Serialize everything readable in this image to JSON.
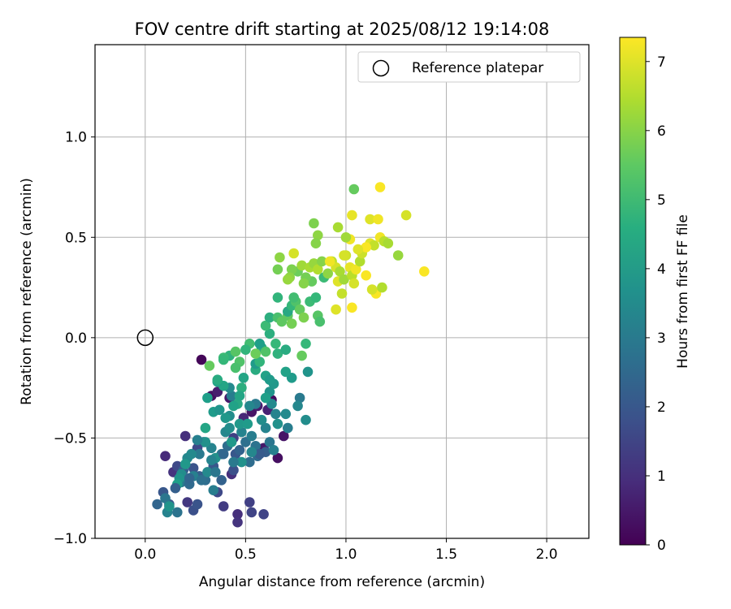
{
  "chart_data": {
    "type": "scatter",
    "title": "FOV centre drift starting at 2025/08/12 19:14:08",
    "xlabel": "Angular distance from reference (arcmin)",
    "ylabel": "Rotation from reference (arcmin)",
    "xlim": [
      -0.25,
      2.21
    ],
    "ylim": [
      -1.0,
      1.46
    ],
    "xticks": [
      0.0,
      0.5,
      1.0,
      1.5,
      2.0
    ],
    "xtick_labels": [
      "0.0",
      "0.5",
      "1.0",
      "1.5",
      "2.0"
    ],
    "yticks": [
      -1.0,
      -0.5,
      0.0,
      0.5,
      1.0
    ],
    "ytick_labels": [
      "−1.0",
      "−0.5",
      "0.0",
      "0.5",
      "1.0"
    ],
    "grid": true,
    "legend": {
      "position": "top-right",
      "entries": [
        {
          "label": "Reference platepar",
          "marker": "open-circle"
        }
      ]
    },
    "reference_point": {
      "x": 0.0,
      "y": 0.0
    },
    "colorbar": {
      "label": "Hours from first FF file",
      "min": 0,
      "max": 7.35,
      "ticks": [
        0,
        1,
        2,
        3,
        4,
        5,
        6,
        7
      ],
      "tick_labels": [
        "0",
        "1",
        "2",
        "3",
        "4",
        "5",
        "6",
        "7"
      ],
      "colormap": "viridis"
    },
    "points": [
      {
        "x": 0.28,
        "y": -0.11,
        "h": 0.1
      },
      {
        "x": 0.33,
        "y": -0.29,
        "h": 0.3
      },
      {
        "x": 0.42,
        "y": -0.3,
        "h": 0.5
      },
      {
        "x": 0.53,
        "y": -0.37,
        "h": 0.4
      },
      {
        "x": 0.56,
        "y": -0.34,
        "h": 0.6
      },
      {
        "x": 0.63,
        "y": -0.31,
        "h": 0.2
      },
      {
        "x": 0.59,
        "y": -0.55,
        "h": 0.5
      },
      {
        "x": 0.66,
        "y": -0.6,
        "h": 0.3
      },
      {
        "x": 0.69,
        "y": -0.49,
        "h": 0.4
      },
      {
        "x": 0.61,
        "y": -0.36,
        "h": 0.7
      },
      {
        "x": 0.49,
        "y": -0.4,
        "h": 0.8
      },
      {
        "x": 0.36,
        "y": -0.27,
        "h": 0.6
      },
      {
        "x": 0.1,
        "y": -0.59,
        "h": 0.9
      },
      {
        "x": 0.2,
        "y": -0.49,
        "h": 1.0
      },
      {
        "x": 0.14,
        "y": -0.67,
        "h": 1.1
      },
      {
        "x": 0.21,
        "y": -0.82,
        "h": 1.2
      },
      {
        "x": 0.43,
        "y": -0.68,
        "h": 1.0
      },
      {
        "x": 0.46,
        "y": -0.88,
        "h": 1.0
      },
      {
        "x": 0.46,
        "y": -0.92,
        "h": 1.1
      },
      {
        "x": 0.39,
        "y": -0.84,
        "h": 1.3
      },
      {
        "x": 0.52,
        "y": -0.82,
        "h": 1.4
      },
      {
        "x": 0.53,
        "y": -0.87,
        "h": 1.5
      },
      {
        "x": 0.59,
        "y": -0.88,
        "h": 1.5
      },
      {
        "x": 0.36,
        "y": -0.77,
        "h": 1.6
      },
      {
        "x": 0.24,
        "y": -0.86,
        "h": 1.8
      },
      {
        "x": 0.26,
        "y": -0.83,
        "h": 1.9
      },
      {
        "x": 0.09,
        "y": -0.77,
        "h": 2.0
      },
      {
        "x": 0.12,
        "y": -0.83,
        "h": 2.1
      },
      {
        "x": 0.06,
        "y": -0.83,
        "h": 2.4
      },
      {
        "x": 0.16,
        "y": -0.87,
        "h": 2.8
      },
      {
        "x": 0.11,
        "y": -0.87,
        "h": 3.3
      },
      {
        "x": 0.1,
        "y": -0.8,
        "h": 2.9
      },
      {
        "x": 0.18,
        "y": -0.72,
        "h": 3.0
      },
      {
        "x": 0.16,
        "y": -0.64,
        "h": 1.6
      },
      {
        "x": 0.19,
        "y": -0.66,
        "h": 2.2
      },
      {
        "x": 0.22,
        "y": -0.73,
        "h": 2.5
      },
      {
        "x": 0.24,
        "y": -0.65,
        "h": 1.9
      },
      {
        "x": 0.27,
        "y": -0.69,
        "h": 2.2
      },
      {
        "x": 0.3,
        "y": -0.71,
        "h": 2.6
      },
      {
        "x": 0.34,
        "y": -0.64,
        "h": 2.0
      },
      {
        "x": 0.38,
        "y": -0.71,
        "h": 2.3
      },
      {
        "x": 0.44,
        "y": -0.66,
        "h": 1.8
      },
      {
        "x": 0.45,
        "y": -0.58,
        "h": 2.0
      },
      {
        "x": 0.47,
        "y": -0.56,
        "h": 2.3
      },
      {
        "x": 0.5,
        "y": -0.52,
        "h": 2.7
      },
      {
        "x": 0.44,
        "y": -0.5,
        "h": 1.4
      },
      {
        "x": 0.41,
        "y": -0.54,
        "h": 2.6
      },
      {
        "x": 0.38,
        "y": -0.58,
        "h": 2.9
      },
      {
        "x": 0.33,
        "y": -0.55,
        "h": 3.3
      },
      {
        "x": 0.29,
        "y": -0.52,
        "h": 2.8
      },
      {
        "x": 0.26,
        "y": -0.55,
        "h": 1.6
      },
      {
        "x": 0.27,
        "y": -0.58,
        "h": 3.0
      },
      {
        "x": 0.21,
        "y": -0.6,
        "h": 3.4
      },
      {
        "x": 0.18,
        "y": -0.68,
        "h": 3.6
      },
      {
        "x": 0.17,
        "y": -0.7,
        "h": 3.8
      },
      {
        "x": 0.24,
        "y": -0.69,
        "h": 3.2
      },
      {
        "x": 0.31,
        "y": -0.67,
        "h": 3.5
      },
      {
        "x": 0.35,
        "y": -0.6,
        "h": 3.7
      },
      {
        "x": 0.4,
        "y": -0.47,
        "h": 3.4
      },
      {
        "x": 0.43,
        "y": -0.52,
        "h": 3.9
      },
      {
        "x": 0.48,
        "y": -0.47,
        "h": 3.3
      },
      {
        "x": 0.53,
        "y": -0.49,
        "h": 3.1
      },
      {
        "x": 0.55,
        "y": -0.54,
        "h": 2.8
      },
      {
        "x": 0.56,
        "y": -0.59,
        "h": 2.5
      },
      {
        "x": 0.6,
        "y": -0.57,
        "h": 2.2
      },
      {
        "x": 0.62,
        "y": -0.52,
        "h": 2.9
      },
      {
        "x": 0.6,
        "y": -0.45,
        "h": 3.3
      },
      {
        "x": 0.58,
        "y": -0.41,
        "h": 3.6
      },
      {
        "x": 0.55,
        "y": -0.33,
        "h": 3.0
      },
      {
        "x": 0.52,
        "y": -0.34,
        "h": 3.4
      },
      {
        "x": 0.47,
        "y": -0.43,
        "h": 3.9
      },
      {
        "x": 0.43,
        "y": -0.29,
        "h": 3.1
      },
      {
        "x": 0.42,
        "y": -0.25,
        "h": 3.5
      },
      {
        "x": 0.39,
        "y": -0.24,
        "h": 4.3
      },
      {
        "x": 0.36,
        "y": -0.22,
        "h": 4.2
      },
      {
        "x": 0.31,
        "y": -0.3,
        "h": 4.1
      },
      {
        "x": 0.34,
        "y": -0.37,
        "h": 4.0
      },
      {
        "x": 0.37,
        "y": -0.36,
        "h": 3.8
      },
      {
        "x": 0.42,
        "y": -0.39,
        "h": 3.6
      },
      {
        "x": 0.46,
        "y": -0.33,
        "h": 4.4
      },
      {
        "x": 0.48,
        "y": -0.25,
        "h": 4.6
      },
      {
        "x": 0.49,
        "y": -0.2,
        "h": 4.3
      },
      {
        "x": 0.55,
        "y": -0.16,
        "h": 4.5
      },
      {
        "x": 0.55,
        "y": -0.13,
        "h": 4.0
      },
      {
        "x": 0.57,
        "y": -0.12,
        "h": 4.8
      },
      {
        "x": 0.6,
        "y": -0.19,
        "h": 4.2
      },
      {
        "x": 0.62,
        "y": -0.27,
        "h": 3.8
      },
      {
        "x": 0.63,
        "y": -0.33,
        "h": 3.5
      },
      {
        "x": 0.65,
        "y": -0.38,
        "h": 3.3
      },
      {
        "x": 0.66,
        "y": -0.43,
        "h": 3.7
      },
      {
        "x": 0.7,
        "y": -0.38,
        "h": 3.5
      },
      {
        "x": 0.71,
        "y": -0.45,
        "h": 3.1
      },
      {
        "x": 0.77,
        "y": -0.3,
        "h": 3.0
      },
      {
        "x": 0.76,
        "y": -0.34,
        "h": 3.4
      },
      {
        "x": 0.8,
        "y": -0.41,
        "h": 3.6
      },
      {
        "x": 0.81,
        "y": -0.17,
        "h": 3.8
      },
      {
        "x": 0.73,
        "y": -0.2,
        "h": 4.0
      },
      {
        "x": 0.7,
        "y": -0.17,
        "h": 4.2
      },
      {
        "x": 0.64,
        "y": -0.23,
        "h": 3.9
      },
      {
        "x": 0.66,
        "y": -0.08,
        "h": 4.7
      },
      {
        "x": 0.7,
        "y": -0.06,
        "h": 4.5
      },
      {
        "x": 0.65,
        "y": -0.03,
        "h": 4.9
      },
      {
        "x": 0.62,
        "y": 0.02,
        "h": 4.6
      },
      {
        "x": 0.58,
        "y": -0.05,
        "h": 4.4
      },
      {
        "x": 0.57,
        "y": -0.03,
        "h": 4.1
      },
      {
        "x": 0.52,
        "y": -0.03,
        "h": 5.1
      },
      {
        "x": 0.5,
        "y": -0.06,
        "h": 4.8
      },
      {
        "x": 0.47,
        "y": -0.12,
        "h": 5.3
      },
      {
        "x": 0.45,
        "y": -0.15,
        "h": 5.2
      },
      {
        "x": 0.42,
        "y": -0.09,
        "h": 4.7
      },
      {
        "x": 0.39,
        "y": -0.1,
        "h": 5.0
      },
      {
        "x": 0.32,
        "y": -0.14,
        "h": 5.6
      },
      {
        "x": 0.6,
        "y": 0.06,
        "h": 5.0
      },
      {
        "x": 0.62,
        "y": 0.1,
        "h": 4.6
      },
      {
        "x": 0.66,
        "y": 0.1,
        "h": 5.2
      },
      {
        "x": 0.71,
        "y": 0.11,
        "h": 5.5
      },
      {
        "x": 0.73,
        "y": 0.07,
        "h": 5.8
      },
      {
        "x": 0.66,
        "y": 0.2,
        "h": 4.8
      },
      {
        "x": 0.71,
        "y": 0.13,
        "h": 4.4
      },
      {
        "x": 0.73,
        "y": 0.16,
        "h": 4.9
      },
      {
        "x": 0.75,
        "y": 0.18,
        "h": 5.3
      },
      {
        "x": 0.77,
        "y": 0.14,
        "h": 5.6
      },
      {
        "x": 0.79,
        "y": 0.1,
        "h": 5.9
      },
      {
        "x": 0.8,
        "y": -0.03,
        "h": 4.9
      },
      {
        "x": 0.78,
        "y": -0.09,
        "h": 5.6
      },
      {
        "x": 0.74,
        "y": 0.2,
        "h": 5.1
      },
      {
        "x": 0.82,
        "y": 0.18,
        "h": 5.0
      },
      {
        "x": 0.85,
        "y": 0.2,
        "h": 4.9
      },
      {
        "x": 0.86,
        "y": 0.11,
        "h": 5.4
      },
      {
        "x": 0.87,
        "y": 0.08,
        "h": 5.2
      },
      {
        "x": 0.89,
        "y": 0.3,
        "h": 5.0
      },
      {
        "x": 0.83,
        "y": 0.28,
        "h": 5.6
      },
      {
        "x": 0.8,
        "y": 0.3,
        "h": 5.8
      },
      {
        "x": 0.79,
        "y": 0.27,
        "h": 6.0
      },
      {
        "x": 0.76,
        "y": 0.33,
        "h": 5.7
      },
      {
        "x": 0.73,
        "y": 0.34,
        "h": 5.9
      },
      {
        "x": 0.72,
        "y": 0.3,
        "h": 6.1
      },
      {
        "x": 0.71,
        "y": 0.29,
        "h": 6.2
      },
      {
        "x": 0.66,
        "y": 0.34,
        "h": 5.8
      },
      {
        "x": 0.67,
        "y": 0.4,
        "h": 6.1
      },
      {
        "x": 0.74,
        "y": 0.42,
        "h": 6.9
      },
      {
        "x": 0.78,
        "y": 0.36,
        "h": 6.3
      },
      {
        "x": 0.82,
        "y": 0.35,
        "h": 6.4
      },
      {
        "x": 0.84,
        "y": 0.37,
        "h": 6.2
      },
      {
        "x": 0.86,
        "y": 0.34,
        "h": 6.5
      },
      {
        "x": 0.88,
        "y": 0.38,
        "h": 6.0
      },
      {
        "x": 0.91,
        "y": 0.32,
        "h": 6.1
      },
      {
        "x": 0.93,
        "y": 0.38,
        "h": 6.6
      },
      {
        "x": 0.95,
        "y": 0.35,
        "h": 6.9
      },
      {
        "x": 0.96,
        "y": 0.28,
        "h": 7.0
      },
      {
        "x": 0.97,
        "y": 0.33,
        "h": 6.4
      },
      {
        "x": 0.98,
        "y": 0.22,
        "h": 6.7
      },
      {
        "x": 0.99,
        "y": 0.29,
        "h": 6.3
      },
      {
        "x": 1.0,
        "y": 0.41,
        "h": 6.8
      },
      {
        "x": 1.02,
        "y": 0.35,
        "h": 7.1
      },
      {
        "x": 1.03,
        "y": 0.31,
        "h": 6.6
      },
      {
        "x": 1.04,
        "y": 0.27,
        "h": 6.9
      },
      {
        "x": 1.05,
        "y": 0.34,
        "h": 7.2
      },
      {
        "x": 1.07,
        "y": 0.38,
        "h": 6.5
      },
      {
        "x": 1.08,
        "y": 0.42,
        "h": 6.8
      },
      {
        "x": 1.1,
        "y": 0.31,
        "h": 7.3
      },
      {
        "x": 1.12,
        "y": 0.47,
        "h": 7.0
      },
      {
        "x": 1.14,
        "y": 0.46,
        "h": 6.7
      },
      {
        "x": 1.15,
        "y": 0.22,
        "h": 7.3
      },
      {
        "x": 1.13,
        "y": 0.24,
        "h": 6.9
      },
      {
        "x": 1.17,
        "y": 0.5,
        "h": 7.2
      },
      {
        "x": 1.19,
        "y": 0.48,
        "h": 6.6
      },
      {
        "x": 1.21,
        "y": 0.47,
        "h": 6.4
      },
      {
        "x": 1.18,
        "y": 0.25,
        "h": 6.5
      },
      {
        "x": 1.26,
        "y": 0.41,
        "h": 6.2
      },
      {
        "x": 1.3,
        "y": 0.61,
        "h": 6.9
      },
      {
        "x": 1.39,
        "y": 0.33,
        "h": 7.3
      },
      {
        "x": 1.17,
        "y": 0.75,
        "h": 7.3
      },
      {
        "x": 1.04,
        "y": 0.74,
        "h": 5.6
      },
      {
        "x": 1.03,
        "y": 0.61,
        "h": 7.1
      },
      {
        "x": 1.12,
        "y": 0.59,
        "h": 7.0
      },
      {
        "x": 1.16,
        "y": 0.59,
        "h": 7.2
      },
      {
        "x": 1.1,
        "y": 0.45,
        "h": 7.3
      },
      {
        "x": 1.06,
        "y": 0.44,
        "h": 7.0
      },
      {
        "x": 1.02,
        "y": 0.49,
        "h": 7.2
      },
      {
        "x": 1.0,
        "y": 0.5,
        "h": 6.3
      },
      {
        "x": 0.96,
        "y": 0.55,
        "h": 6.4
      },
      {
        "x": 0.86,
        "y": 0.51,
        "h": 6.1
      },
      {
        "x": 0.84,
        "y": 0.57,
        "h": 5.9
      },
      {
        "x": 0.85,
        "y": 0.47,
        "h": 6.0
      },
      {
        "x": 0.92,
        "y": 0.38,
        "h": 7.2
      },
      {
        "x": 0.99,
        "y": 0.41,
        "h": 6.9
      },
      {
        "x": 1.03,
        "y": 0.15,
        "h": 7.3
      },
      {
        "x": 0.95,
        "y": 0.14,
        "h": 7.0
      },
      {
        "x": 0.68,
        "y": 0.08,
        "h": 5.5
      },
      {
        "x": 0.6,
        "y": -0.07,
        "h": 5.3
      },
      {
        "x": 0.55,
        "y": -0.08,
        "h": 5.7
      },
      {
        "x": 0.45,
        "y": -0.07,
        "h": 5.4
      },
      {
        "x": 0.39,
        "y": -0.11,
        "h": 4.9
      },
      {
        "x": 0.36,
        "y": -0.21,
        "h": 4.5
      },
      {
        "x": 0.3,
        "y": -0.45,
        "h": 4.3
      },
      {
        "x": 0.3,
        "y": -0.52,
        "h": 3.7
      },
      {
        "x": 0.26,
        "y": -0.51,
        "h": 3.2
      },
      {
        "x": 0.23,
        "y": -0.58,
        "h": 3.5
      },
      {
        "x": 0.2,
        "y": -0.63,
        "h": 3.9
      },
      {
        "x": 0.16,
        "y": -0.73,
        "h": 4.1
      },
      {
        "x": 0.12,
        "y": -0.84,
        "h": 3.8
      },
      {
        "x": 0.52,
        "y": -0.62,
        "h": 2.6
      },
      {
        "x": 0.57,
        "y": -0.58,
        "h": 2.1
      },
      {
        "x": 0.64,
        "y": -0.56,
        "h": 3.2
      },
      {
        "x": 0.53,
        "y": -0.57,
        "h": 3.4
      },
      {
        "x": 0.48,
        "y": -0.62,
        "h": 3.7
      },
      {
        "x": 0.34,
        "y": -0.76,
        "h": 3.1
      },
      {
        "x": 0.28,
        "y": -0.71,
        "h": 2.7
      },
      {
        "x": 0.22,
        "y": -0.7,
        "h": 2.4
      },
      {
        "x": 0.15,
        "y": -0.75,
        "h": 2.2
      },
      {
        "x": 0.39,
        "y": -0.58,
        "h": 2.4
      },
      {
        "x": 0.33,
        "y": -0.61,
        "h": 3.3
      },
      {
        "x": 0.35,
        "y": -0.67,
        "h": 2.9
      },
      {
        "x": 0.44,
        "y": -0.62,
        "h": 3.0
      },
      {
        "x": 0.4,
        "y": -0.4,
        "h": 3.9
      },
      {
        "x": 0.44,
        "y": -0.34,
        "h": 4.2
      },
      {
        "x": 0.51,
        "y": -0.43,
        "h": 4.0
      },
      {
        "x": 0.6,
        "y": -0.3,
        "h": 4.1
      },
      {
        "x": 0.62,
        "y": -0.21,
        "h": 4.0
      },
      {
        "x": 0.47,
        "y": -0.29,
        "h": 4.3
      },
      {
        "x": 0.42,
        "y": -0.45,
        "h": 3.6
      }
    ]
  }
}
